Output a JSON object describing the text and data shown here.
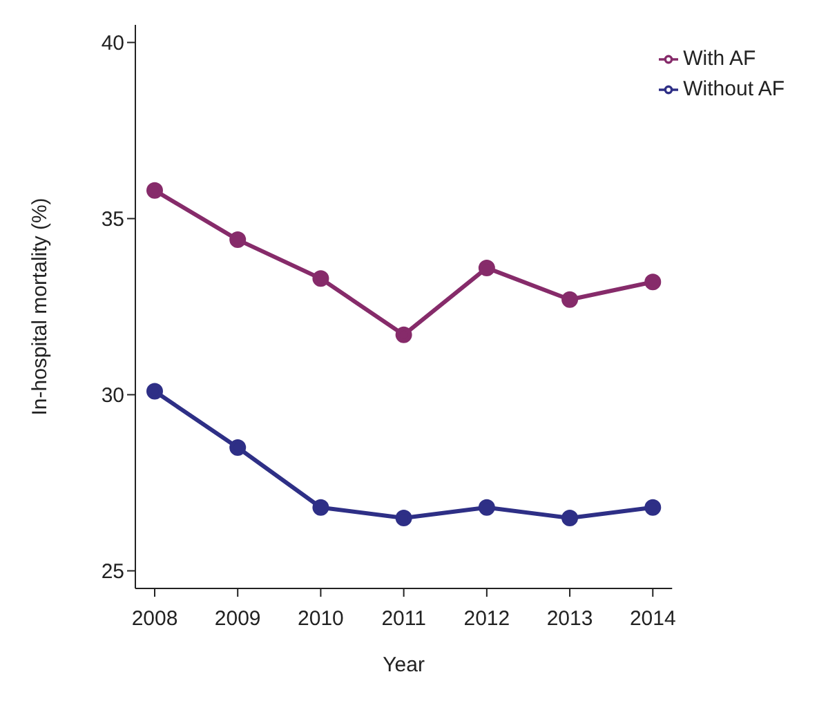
{
  "chart_data": {
    "type": "line",
    "xlabel": "Year",
    "ylabel": "In-hospital mortality (%)",
    "categories": [
      "2008",
      "2009",
      "2010",
      "2011",
      "2012",
      "2013",
      "2014"
    ],
    "series": [
      {
        "name": "With AF",
        "color": "#862b6a",
        "values": [
          35.8,
          34.4,
          33.3,
          31.7,
          33.6,
          32.7,
          33.2
        ]
      },
      {
        "name": "Without AF",
        "color": "#2e2f86",
        "values": [
          30.1,
          28.5,
          26.8,
          26.5,
          26.8,
          26.5,
          26.8
        ]
      }
    ],
    "ylim": [
      24.5,
      40.5
    ],
    "yticks": [
      25,
      30,
      35,
      40
    ],
    "grid": false,
    "legend": "top right",
    "marker": "circle",
    "line_style": "solid"
  }
}
